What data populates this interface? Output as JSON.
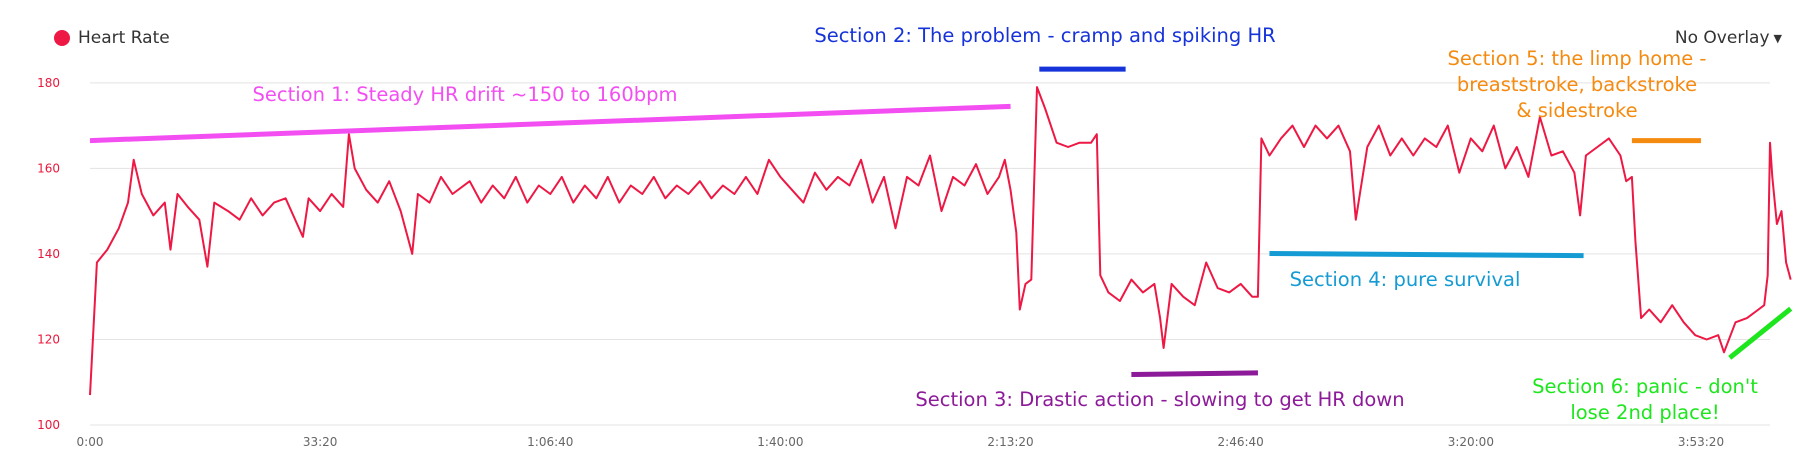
{
  "legend": {
    "label": "Heart Rate",
    "color": "#ee1844"
  },
  "overlay": {
    "label": "No Overlay",
    "caret_icon": "caret-down-icon"
  },
  "chart_data": {
    "type": "line",
    "xlabel": "",
    "ylabel": "",
    "y_ticks": [
      100,
      120,
      140,
      160,
      180
    ],
    "ylim": [
      100,
      183
    ],
    "x_tick_labels": [
      "0:00",
      "33:20",
      "1:06:40",
      "1:40:00",
      "2:13:20",
      "2:46:40",
      "3:20:00",
      "3:53:20"
    ],
    "x_tick_seconds": [
      0,
      2000,
      4000,
      6000,
      8000,
      10000,
      12000,
      14000
    ],
    "xlim_seconds": [
      0,
      14600
    ],
    "grid": true,
    "legend_position": "top-left",
    "series": [
      {
        "name": "Heart Rate",
        "color": "#ee1844",
        "points": [
          [
            0,
            107
          ],
          [
            60,
            138
          ],
          [
            150,
            141
          ],
          [
            250,
            146
          ],
          [
            330,
            152
          ],
          [
            380,
            162
          ],
          [
            450,
            154
          ],
          [
            550,
            149
          ],
          [
            650,
            152
          ],
          [
            700,
            141
          ],
          [
            760,
            154
          ],
          [
            850,
            151
          ],
          [
            950,
            148
          ],
          [
            1020,
            137
          ],
          [
            1080,
            152
          ],
          [
            1200,
            150
          ],
          [
            1300,
            148
          ],
          [
            1400,
            153
          ],
          [
            1500,
            149
          ],
          [
            1600,
            152
          ],
          [
            1700,
            153
          ],
          [
            1800,
            147
          ],
          [
            1850,
            144
          ],
          [
            1900,
            153
          ],
          [
            2000,
            150
          ],
          [
            2100,
            154
          ],
          [
            2200,
            151
          ],
          [
            2250,
            168
          ],
          [
            2300,
            160
          ],
          [
            2400,
            155
          ],
          [
            2500,
            152
          ],
          [
            2600,
            157
          ],
          [
            2700,
            150
          ],
          [
            2800,
            140
          ],
          [
            2850,
            154
          ],
          [
            2950,
            152
          ],
          [
            3050,
            158
          ],
          [
            3150,
            154
          ],
          [
            3300,
            157
          ],
          [
            3400,
            152
          ],
          [
            3500,
            156
          ],
          [
            3600,
            153
          ],
          [
            3700,
            158
          ],
          [
            3800,
            152
          ],
          [
            3900,
            156
          ],
          [
            4000,
            154
          ],
          [
            4100,
            158
          ],
          [
            4200,
            152
          ],
          [
            4300,
            156
          ],
          [
            4400,
            153
          ],
          [
            4500,
            158
          ],
          [
            4600,
            152
          ],
          [
            4700,
            156
          ],
          [
            4800,
            154
          ],
          [
            4900,
            158
          ],
          [
            5000,
            153
          ],
          [
            5100,
            156
          ],
          [
            5200,
            154
          ],
          [
            5300,
            157
          ],
          [
            5400,
            153
          ],
          [
            5500,
            156
          ],
          [
            5600,
            154
          ],
          [
            5700,
            158
          ],
          [
            5800,
            154
          ],
          [
            5900,
            162
          ],
          [
            6000,
            158
          ],
          [
            6100,
            155
          ],
          [
            6200,
            152
          ],
          [
            6300,
            159
          ],
          [
            6400,
            155
          ],
          [
            6500,
            158
          ],
          [
            6600,
            156
          ],
          [
            6700,
            162
          ],
          [
            6800,
            152
          ],
          [
            6900,
            158
          ],
          [
            7000,
            146
          ],
          [
            7100,
            158
          ],
          [
            7200,
            156
          ],
          [
            7300,
            163
          ],
          [
            7400,
            150
          ],
          [
            7500,
            158
          ],
          [
            7600,
            156
          ],
          [
            7700,
            161
          ],
          [
            7800,
            154
          ],
          [
            7900,
            158
          ],
          [
            7950,
            162
          ],
          [
            8000,
            155
          ],
          [
            8050,
            145
          ],
          [
            8080,
            127
          ],
          [
            8130,
            133
          ],
          [
            8180,
            134
          ],
          [
            8230,
            179
          ],
          [
            8300,
            174
          ],
          [
            8400,
            166
          ],
          [
            8500,
            165
          ],
          [
            8600,
            166
          ],
          [
            8700,
            166
          ],
          [
            8750,
            168
          ],
          [
            8780,
            135
          ],
          [
            8850,
            131
          ],
          [
            8950,
            129
          ],
          [
            9050,
            134
          ],
          [
            9150,
            131
          ],
          [
            9250,
            133
          ],
          [
            9300,
            125
          ],
          [
            9330,
            118
          ],
          [
            9400,
            133
          ],
          [
            9500,
            130
          ],
          [
            9600,
            128
          ],
          [
            9700,
            138
          ],
          [
            9800,
            132
          ],
          [
            9900,
            131
          ],
          [
            10000,
            133
          ],
          [
            10100,
            130
          ],
          [
            10150,
            130
          ],
          [
            10180,
            167
          ],
          [
            10250,
            163
          ],
          [
            10350,
            167
          ],
          [
            10450,
            170
          ],
          [
            10550,
            165
          ],
          [
            10650,
            170
          ],
          [
            10750,
            167
          ],
          [
            10850,
            170
          ],
          [
            10950,
            164
          ],
          [
            11000,
            148
          ],
          [
            11100,
            165
          ],
          [
            11200,
            170
          ],
          [
            11300,
            163
          ],
          [
            11400,
            167
          ],
          [
            11500,
            163
          ],
          [
            11600,
            167
          ],
          [
            11700,
            165
          ],
          [
            11800,
            170
          ],
          [
            11900,
            159
          ],
          [
            12000,
            167
          ],
          [
            12100,
            164
          ],
          [
            12200,
            170
          ],
          [
            12300,
            160
          ],
          [
            12400,
            165
          ],
          [
            12500,
            158
          ],
          [
            12600,
            172
          ],
          [
            12700,
            163
          ],
          [
            12800,
            164
          ],
          [
            12900,
            159
          ],
          [
            12950,
            149
          ],
          [
            13000,
            163
          ],
          [
            13100,
            165
          ],
          [
            13200,
            167
          ],
          [
            13300,
            163
          ],
          [
            13350,
            157
          ],
          [
            13400,
            158
          ],
          [
            13430,
            143
          ],
          [
            13480,
            125
          ],
          [
            13550,
            127
          ],
          [
            13650,
            124
          ],
          [
            13750,
            128
          ],
          [
            13850,
            124
          ],
          [
            13950,
            121
          ],
          [
            14050,
            120
          ],
          [
            14150,
            121
          ],
          [
            14200,
            117
          ],
          [
            14300,
            124
          ],
          [
            14400,
            125
          ],
          [
            14500,
            127
          ],
          [
            14550,
            128
          ],
          [
            14580,
            135
          ],
          [
            14600,
            166
          ],
          [
            14620,
            158
          ],
          [
            14660,
            147
          ],
          [
            14700,
            150
          ],
          [
            14740,
            138
          ],
          [
            14780,
            134
          ]
        ]
      }
    ],
    "annotations": [
      {
        "id": "s1",
        "text": [
          "Section 1: Steady HR drift ~150 to 160bpm"
        ],
        "color": "#f24ef2",
        "line": {
          "x": [
            0,
            8000
          ],
          "y": [
            166.5,
            174.5
          ]
        }
      },
      {
        "id": "s2",
        "text": [
          "Section 2: The problem - cramp and spiking HR"
        ],
        "color": "#1633d9",
        "line": {
          "x": [
            8250,
            9000
          ],
          "y": [
            183.2,
            183.2
          ]
        }
      },
      {
        "id": "s3",
        "text": [
          "Section 3: Drastic action - slowing to get HR down"
        ],
        "color": "#8c1a99",
        "line": {
          "x": [
            9050,
            10150
          ],
          "y": [
            111.8,
            112.2
          ]
        }
      },
      {
        "id": "s4",
        "text": [
          "Section 4: pure survival"
        ],
        "color": "#159bd3",
        "line": {
          "x": [
            10250,
            12980
          ],
          "y": [
            140.1,
            139.6
          ]
        }
      },
      {
        "id": "s5",
        "text": [
          "Section 5: the limp home -",
          "breaststroke, backstroke",
          "& sidestroke"
        ],
        "color": "#f58a10",
        "line": {
          "x": [
            13400,
            14000
          ],
          "y": [
            166.5,
            166.5
          ]
        }
      },
      {
        "id": "s6",
        "text": [
          "Section 6: panic - don't",
          "lose 2nd place!"
        ],
        "color": "#1ee61e",
        "line": {
          "x": [
            14250,
            14780
          ],
          "y": [
            115.7,
            127.2
          ]
        }
      }
    ]
  }
}
